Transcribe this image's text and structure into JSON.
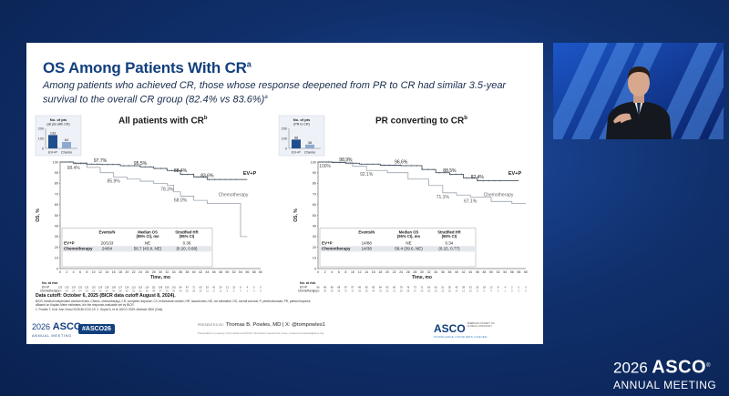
{
  "slide": {
    "title": "OS Among Patients With CR",
    "title_sup": "a",
    "subtitle": "Among patients who achieved CR, those whose response deepened from PR to CR had similar 3.5-year survival to the overall CR group (82.4% vs 83.6%)",
    "subtitle_sup": "a"
  },
  "panels": [
    {
      "title": "All patients with CR",
      "title_sup": "b",
      "inset": {
        "label_l1": "No. of pts",
        "label_l2": "(all pts with CR)",
        "y_ticks": [
          "200",
          "100",
          "0"
        ],
        "bars": [
          {
            "name": "EV+P",
            "value": 133
          },
          {
            "name": "Chemo",
            "value": 64
          }
        ],
        "x_labels": [
          "EV+P",
          "Chemo"
        ]
      },
      "annotations_top": [
        "97.7%",
        "95.5%",
        "88.4%",
        "83.6%"
      ],
      "annotations_bottom": [
        "98.4%",
        "85.9%",
        "78.3%",
        "68.0%"
      ],
      "series_labels": [
        "EV+P",
        "Chemotherapy"
      ],
      "ylabel": "OS, %",
      "xlabel": "Time, mo",
      "y_ticks": [
        "100",
        "90",
        "80",
        "70",
        "60",
        "50",
        "40",
        "30",
        "20",
        "10",
        "0"
      ],
      "x_ticks": [
        "0",
        "2",
        "4",
        "6",
        "8",
        "10",
        "12",
        "14",
        "16",
        "18",
        "20",
        "22",
        "24",
        "26",
        "28",
        "30",
        "32",
        "34",
        "36",
        "38",
        "40",
        "42",
        "44",
        "46",
        "48",
        "50",
        "52",
        "54",
        "56",
        "58",
        "60"
      ],
      "table": {
        "headers": [
          "",
          "Events/N",
          "Median OS\n(95% CI), mo",
          "Stratified HR\n(95% CI)"
        ],
        "rows": [
          [
            "EV+P",
            "20/133",
            "NE",
            "0.36"
          ],
          [
            "Chemotherapy",
            "24/64",
            "56.7 (43.9, NE)",
            "(0.20, 0.68)"
          ]
        ]
      },
      "at_risk": {
        "label": "No. at risk",
        "evp_label": "EV+P",
        "chemo_label": "Chemotherapy",
        "evp": [
          "133",
          "133",
          "133",
          "132",
          "131",
          "131",
          "129",
          "128",
          "128",
          "127",
          "126",
          "121",
          "118",
          "116",
          "111",
          "109",
          "106",
          "101",
          "96",
          "87",
          "71",
          "60",
          "53",
          "42",
          "30",
          "21",
          "15",
          "8",
          "4",
          "0",
          "0"
        ],
        "chemo": [
          "64",
          "64",
          "64",
          "64",
          "63",
          "63",
          "62",
          "60",
          "59",
          "58",
          "56",
          "55",
          "52",
          "50",
          "48",
          "47",
          "45",
          "43",
          "40",
          "35",
          "28",
          "25",
          "21",
          "17",
          "12",
          "8",
          "6",
          "3",
          "1",
          "0",
          "0"
        ]
      }
    },
    {
      "title": "PR converting to CR",
      "title_sup": "b",
      "inset": {
        "label_l1": "No. of pts",
        "label_l2": "(PR to CR)",
        "y_ticks": [
          "200",
          "100",
          "0"
        ],
        "bars": [
          {
            "name": "EV+P",
            "value": 88
          },
          {
            "name": "Chemo",
            "value": 38
          }
        ],
        "x_labels": [
          "EV+P",
          "Chemo"
        ]
      },
      "annotations_top": [
        "98.9%",
        "96.6%",
        "88.5%",
        "82.4%"
      ],
      "annotations_bottom": [
        "100%",
        "92.1%",
        "71.1%",
        "67.1%"
      ],
      "series_labels": [
        "EV+P",
        "Chemotherapy"
      ],
      "ylabel": "OS, %",
      "xlabel": "Time, mo",
      "y_ticks": [
        "100",
        "90",
        "80",
        "70",
        "60",
        "50",
        "40",
        "30",
        "20",
        "10",
        "0"
      ],
      "x_ticks": [
        "0",
        "2",
        "4",
        "6",
        "8",
        "10",
        "12",
        "14",
        "16",
        "18",
        "20",
        "22",
        "24",
        "26",
        "28",
        "30",
        "32",
        "34",
        "36",
        "38",
        "40",
        "42",
        "44",
        "46",
        "48",
        "50",
        "52",
        "54",
        "56",
        "58",
        "60"
      ],
      "table": {
        "headers": [
          "",
          "Events/N",
          "Median OS\n(95% CI), mo",
          "Stratified HR\n(95% CI)"
        ],
        "rows": [
          [
            "EV+P",
            "14/88",
            "NE",
            "0.34"
          ],
          [
            "Chemotherapy",
            "14/38",
            "59.4 (39.6, NE)",
            "(0.15, 0.77)"
          ]
        ]
      },
      "at_risk": {
        "label": "No. at risk",
        "evp_label": "EV+P",
        "chemo_label": "Chemotherapy",
        "evp": [
          "88",
          "88",
          "88",
          "88",
          "87",
          "87",
          "86",
          "85",
          "85",
          "84",
          "83",
          "80",
          "78",
          "76",
          "73",
          "71",
          "69",
          "65",
          "61",
          "55",
          "45",
          "38",
          "33",
          "26",
          "18",
          "12",
          "8",
          "4",
          "2",
          "0",
          "0"
        ],
        "chemo": [
          "38",
          "38",
          "38",
          "38",
          "37",
          "37",
          "36",
          "35",
          "34",
          "33",
          "32",
          "31",
          "29",
          "28",
          "27",
          "26",
          "25",
          "23",
          "21",
          "18",
          "14",
          "12",
          "10",
          "8",
          "6",
          "4",
          "3",
          "1",
          "0",
          "0",
          "0"
        ]
      }
    }
  ],
  "footnotes": {
    "cutoff": "Data cutoff: October 6, 2025 (BICR data cutoff August 8, 2024).",
    "line1": "BICR, blinded independent central review; Chemo, chemotherapy; CR, complete response; CV, enfortumab vedotin; HR, hazard ratio; NE, not estimable; OS, overall survival; P, pembrolizumab; PR, partial response.",
    "line2": "aBased on Kaplan-Meier estimates. bIn the response-evaluable set by BICR.",
    "line3": "1. Powles T, et al. Ann Oncol 2025;36:1212-19. 2. Gupta S, et al. ASCO 2025. Abstract 4502 (Oral)."
  },
  "slide_footer": {
    "asco_year": "2026",
    "asco_name": "ASCO",
    "asco_sub": "ANNUAL MEETING",
    "hashtag": "#ASCO26",
    "presented_label": "PRESENTED BY:",
    "presenter": "Thomas B. Powles, MD | X: @tompowles1",
    "disclaimer": "Presentation is property of the author and ASCO. Permission required for reuse; contact permissions@asco.org",
    "logo2_name": "ASCO",
    "logo2_tag": "AMERICAN SOCIETY OF CLINICAL ONCOLOGY",
    "logo2_sub": "KNOWLEDGE CONQUERS CANCER"
  },
  "brand": {
    "year": "2026",
    "name": "ASCO",
    "sub": "ANNUAL MEETING"
  },
  "colors": {
    "evp_line": "#4a5766",
    "chemo_line": "#9aa3ad",
    "title": "#123f7d",
    "inset_evp": "#1f4e8c",
    "inset_chemo": "#8da9cf"
  }
}
